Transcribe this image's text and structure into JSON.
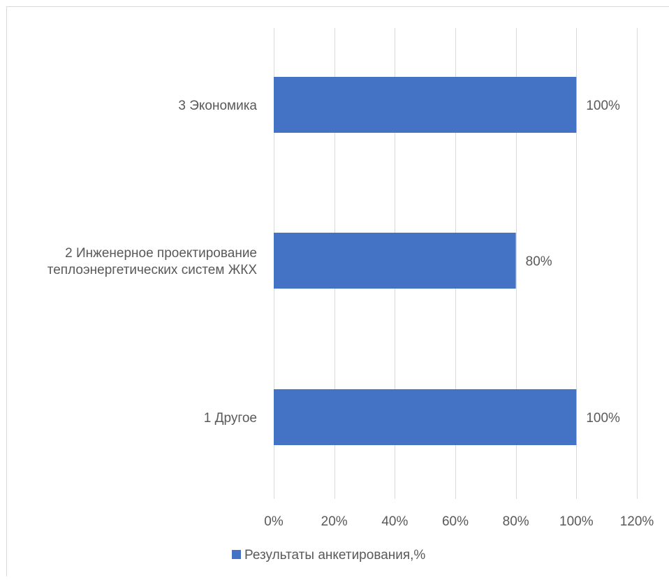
{
  "chart_data": {
    "type": "bar",
    "orientation": "horizontal",
    "categories": [
      [
        "1 Другое"
      ],
      [
        "2 Инженерное проектирование",
        "теплоэнергетических систем ЖКХ"
      ],
      [
        "3 Экономика"
      ]
    ],
    "series": [
      {
        "name": "Результаты анкетирования,%",
        "values": [
          100,
          80,
          100
        ],
        "labels": [
          "100%",
          "80%",
          "100%"
        ],
        "color": "#4472C4"
      }
    ],
    "xlim": [
      0,
      120
    ],
    "xticks": [
      {
        "value": 0,
        "label": "0%"
      },
      {
        "value": 20,
        "label": "20%"
      },
      {
        "value": 40,
        "label": "40%"
      },
      {
        "value": 60,
        "label": "60%"
      },
      {
        "value": 80,
        "label": "80%"
      },
      {
        "value": 100,
        "label": "100%"
      },
      {
        "value": 120,
        "label": "120%"
      }
    ],
    "grid": true,
    "legend": "bottom",
    "colors": {
      "grid": "#D9D9D9",
      "text": "#595959",
      "border": "#D9D9D9"
    }
  }
}
